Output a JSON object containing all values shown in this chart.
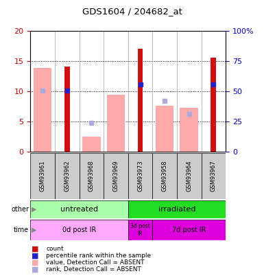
{
  "title": "GDS1604 / 204682_at",
  "samples": [
    "GSM93961",
    "GSM93962",
    "GSM93968",
    "GSM93969",
    "GSM93973",
    "GSM93958",
    "GSM93964",
    "GSM93967"
  ],
  "count_values": [
    0,
    14.0,
    0,
    0,
    17.0,
    0,
    0,
    15.5
  ],
  "rank_values": [
    0,
    10.1,
    0,
    0,
    11.1,
    0,
    0,
    11.1
  ],
  "absent_value": [
    13.8,
    0,
    2.5,
    9.4,
    0,
    7.6,
    7.2,
    0
  ],
  "absent_rank": [
    10.1,
    0,
    4.7,
    0,
    0,
    8.4,
    6.2,
    0
  ],
  "ylim_left": [
    0,
    20
  ],
  "ylim_right": [
    0,
    100
  ],
  "yticks_left": [
    0,
    5,
    10,
    15,
    20
  ],
  "ytick_labels_left": [
    "0",
    "5",
    "10",
    "15",
    "20"
  ],
  "ytick_labels_right": [
    "0",
    "25",
    "50",
    "75",
    "100%"
  ],
  "bar_color_dark_red": "#CC1111",
  "bar_color_dark_blue": "#2222CC",
  "bar_color_pink": "#FFAAAA",
  "bar_color_light_blue": "#AAAADD",
  "other_groups": [
    {
      "label": "untreated",
      "start": 0,
      "end": 4,
      "color": "#AAFFAA"
    },
    {
      "label": "irradiated",
      "start": 4,
      "end": 8,
      "color": "#22DD22"
    }
  ],
  "time_groups": [
    {
      "label": "0d post IR",
      "start": 0,
      "end": 4,
      "color": "#FFAAFF"
    },
    {
      "label": "3d post\nIR",
      "start": 4,
      "end": 5,
      "color": "#DD00DD"
    },
    {
      "label": "7d post IR",
      "start": 5,
      "end": 8,
      "color": "#DD00DD"
    }
  ],
  "tick_label_color_left": "#CC0000",
  "tick_label_color_right": "#0000CC"
}
